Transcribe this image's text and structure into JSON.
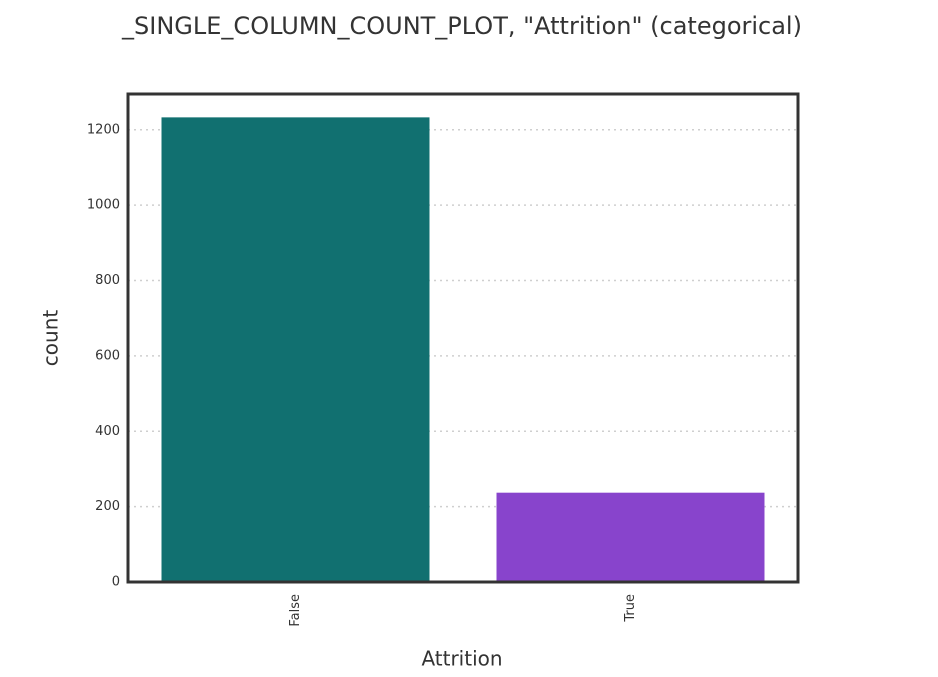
{
  "chart_data": {
    "type": "bar",
    "title": "_SINGLE_COLUMN_COUNT_PLOT, \"Attrition\" (categorical)",
    "x_label": "Attrition",
    "y_label": "count",
    "categories": [
      "False",
      "True"
    ],
    "values": [
      1233,
      237
    ],
    "colors": [
      "#117070",
      "#8844cc"
    ],
    "ylim": [
      0,
      1295
    ],
    "yticks": [
      0,
      200,
      400,
      600,
      800,
      1000,
      1200
    ],
    "grid": true
  }
}
